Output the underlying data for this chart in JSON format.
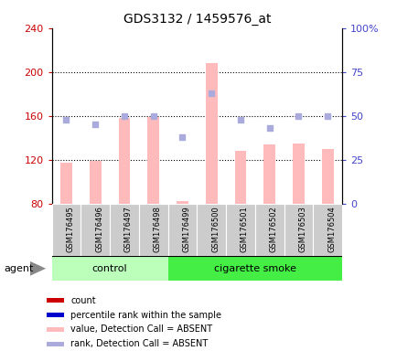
{
  "title": "GDS3132 / 1459576_at",
  "samples": [
    "GSM176495",
    "GSM176496",
    "GSM176497",
    "GSM176498",
    "GSM176499",
    "GSM176500",
    "GSM176501",
    "GSM176502",
    "GSM176503",
    "GSM176504"
  ],
  "bar_values": [
    117,
    119,
    158,
    159,
    82,
    208,
    128,
    134,
    135,
    130
  ],
  "rank_values": [
    48,
    45,
    50,
    50,
    38,
    63,
    48,
    43,
    50,
    50
  ],
  "ylim_left": [
    80,
    240
  ],
  "ylim_right": [
    0,
    100
  ],
  "yticks_left": [
    80,
    120,
    160,
    200,
    240
  ],
  "yticks_right": [
    0,
    25,
    50,
    75,
    100
  ],
  "yticklabels_right": [
    "0",
    "25",
    "50",
    "75",
    "100%"
  ],
  "groups": [
    {
      "label": "control",
      "start": 0,
      "end": 4,
      "color": "#bbffbb"
    },
    {
      "label": "cigarette smoke",
      "start": 4,
      "end": 10,
      "color": "#44ee44"
    }
  ],
  "bar_color": "#ffbbbb",
  "rank_color": "#aaaadd",
  "left_tick_color": "#cc0000",
  "right_tick_color": "#4444cc",
  "agent_label": "agent",
  "background_color": "#ffffff",
  "plot_bg": "#ffffff",
  "grid_color": "#000000",
  "sample_box_color": "#cccccc",
  "legend_items": [
    {
      "label": "count",
      "color": "#cc0000"
    },
    {
      "label": "percentile rank within the sample",
      "color": "#0000cc"
    },
    {
      "label": "value, Detection Call = ABSENT",
      "color": "#ffbbbb"
    },
    {
      "label": "rank, Detection Call = ABSENT",
      "color": "#aaaadd"
    }
  ],
  "bar_width": 0.4
}
